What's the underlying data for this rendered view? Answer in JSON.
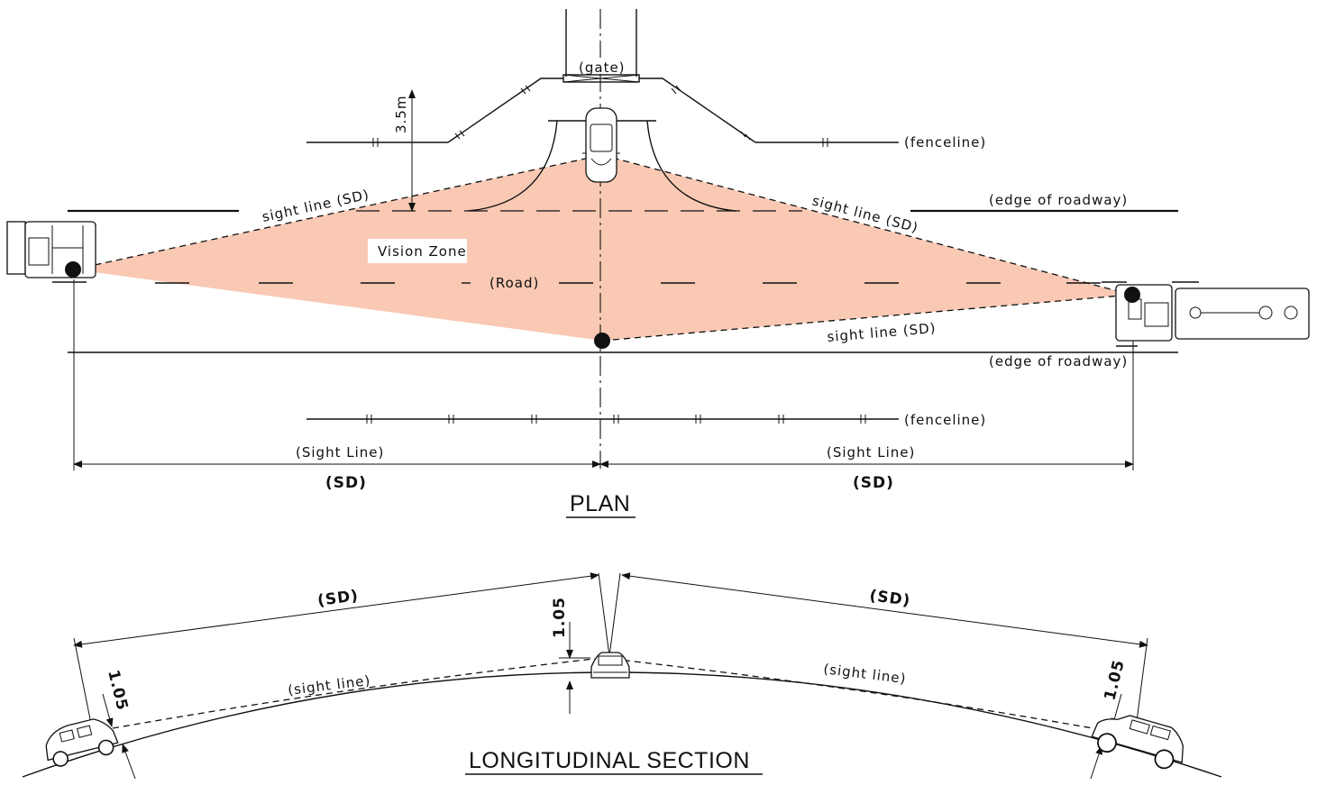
{
  "plan": {
    "title": "PLAN",
    "gate": "(gate)",
    "offset": "3.5m",
    "fenceline_top": "(fenceline)",
    "fenceline_bottom": "(fenceline)",
    "edge_top": "(edge of roadway)",
    "edge_bottom": "(edge of roadway)",
    "sight_line_left": "sight line (SD)",
    "sight_line_right": "sight line (SD)",
    "sight_line_lower": "sight line (SD)",
    "vision_zone": "Vision Zone",
    "road": "(Road)",
    "dim_left_label": "(Sight Line)",
    "dim_right_label": "(Sight Line)",
    "dim_left_value": "(SD)",
    "dim_right_value": "(SD)",
    "vision_zone_color": "#f9c9b4"
  },
  "section": {
    "title": "LONGITUDINAL SECTION",
    "sd_left": "(SD)",
    "sd_right": "(SD)",
    "height_left": "1.05",
    "height_center": "1.05",
    "height_right": "1.05",
    "sight_left": "(sight line)",
    "sight_right": "(sight line)"
  }
}
